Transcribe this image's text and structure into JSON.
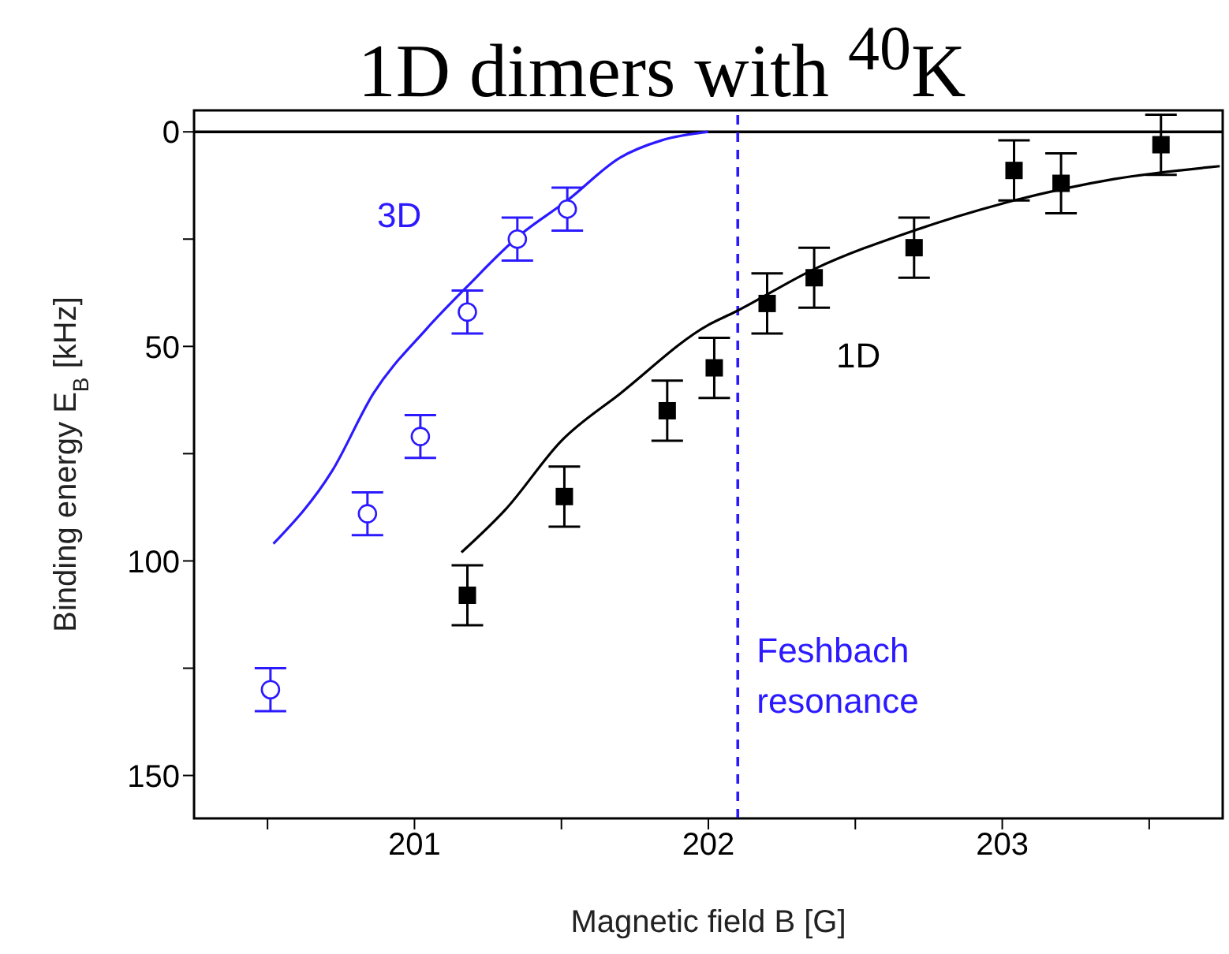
{
  "chart_data": {
    "type": "scatter",
    "title": "1D dimers with $^{40}$K",
    "xlabel": "Magnetic field B [G]",
    "ylabel": "Binding energy E$_{B}$ [kHz]",
    "xlim": [
      200.25,
      203.75
    ],
    "xticks": [
      {
        "value": 200.5,
        "label": null
      },
      201,
      {
        "value": 201.5,
        "label": null
      },
      202,
      {
        "value": 202.5,
        "label": null
      },
      203,
      {
        "value": 203.5,
        "label": null
      }
    ],
    "ylim": [
      160,
      -5
    ],
    "yticks": [
      0,
      {
        "value": 25,
        "label": null
      },
      50,
      {
        "value": 75,
        "label": null
      },
      100,
      {
        "value": 125,
        "label": null
      },
      150
    ],
    "series": [
      {
        "name": "3D",
        "marker": "circle",
        "color": "#2b1aff",
        "x": [
          200.51,
          200.84,
          201.02,
          201.18,
          201.35,
          201.52
        ],
        "values": [
          130,
          89,
          71,
          42,
          25,
          18
        ],
        "errors": [
          5,
          5,
          5,
          5,
          5,
          5
        ]
      },
      {
        "name": "1D",
        "marker": "square",
        "color": "#000000",
        "x": [
          201.18,
          201.51,
          201.86,
          202.02,
          202.2,
          202.36,
          202.7,
          203.04,
          203.2,
          203.54
        ],
        "values": [
          108,
          85,
          65,
          55,
          40,
          34,
          27,
          9,
          12,
          3
        ],
        "errors": [
          7,
          7,
          7,
          7,
          7,
          7,
          7,
          7,
          7,
          7
        ]
      },
      {
        "type": "line",
        "color": "#2b1aff",
        "x": [
          200.52,
          200.72,
          200.86,
          201.04,
          201.18,
          201.36,
          201.52,
          201.7,
          201.84,
          202.0
        ],
        "values": [
          96,
          79,
          61,
          46,
          36,
          24,
          16,
          6,
          2,
          0
        ]
      },
      {
        "type": "line",
        "color": "#000000",
        "x": [
          201.16,
          201.31,
          201.5,
          201.7,
          202.0,
          202.09,
          202.36,
          202.7,
          203.04,
          203.38,
          203.74
        ],
        "values": [
          98,
          88,
          72,
          61,
          45,
          42,
          32,
          23,
          16,
          11,
          8
        ]
      }
    ],
    "ref_lines": [
      {
        "axis": "y",
        "value": 0,
        "label": null,
        "color": "#000000",
        "line_style": "solid"
      },
      {
        "axis": "x",
        "value": 202.1,
        "label": "Feshbach resonance",
        "color": "#2b1aff",
        "line_style": "dashed"
      }
    ]
  }
}
